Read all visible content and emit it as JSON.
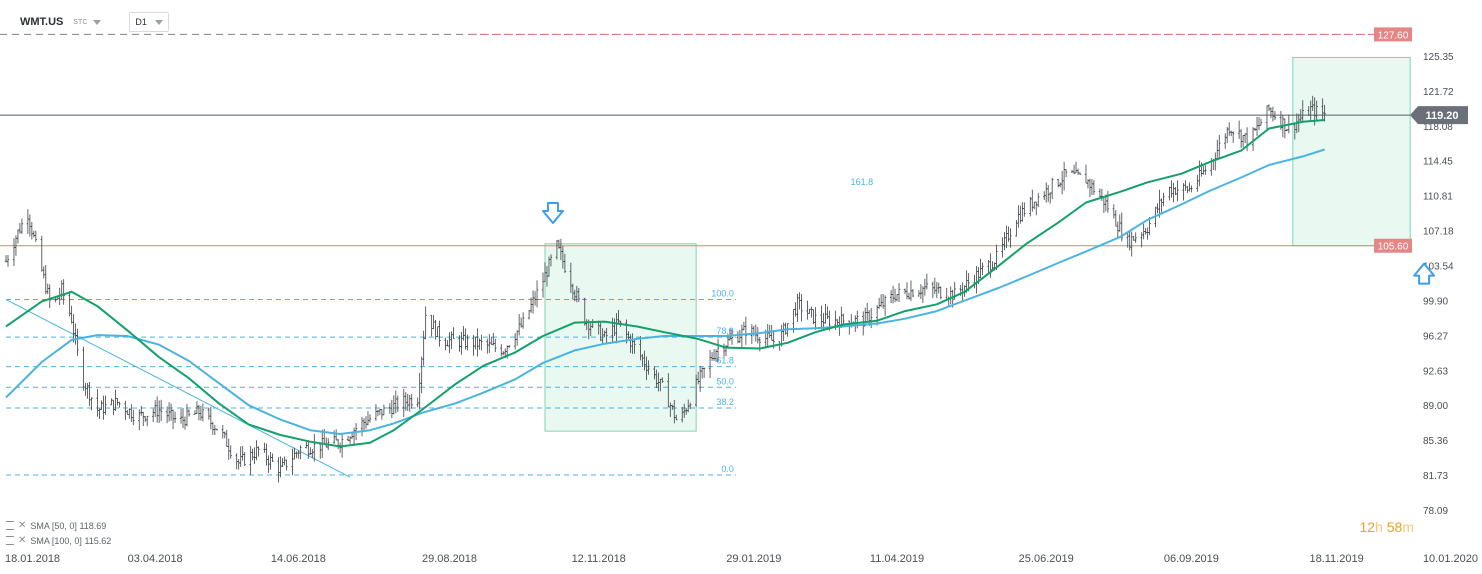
{
  "header": {
    "symbol": "WMT.US",
    "label_stc": "STC",
    "timeframe": "D1"
  },
  "timer": {
    "hours": "12",
    "h_unit": "h",
    "minutes": "58",
    "m_unit": "m"
  },
  "legend": [
    {
      "label": "SMA [50, 0]",
      "value": "118.69"
    },
    {
      "label": "SMA [100, 0]",
      "value": "115.62"
    }
  ],
  "colors": {
    "sma50": "#13a06a",
    "sma100": "#4ab3e0",
    "fib": "#4ab3e0",
    "level_red": "#e97d7d",
    "current": "#555b62",
    "candle": "#3a3f45",
    "box_fill": "#e3f7ee",
    "box_stroke": "#7fd4b2",
    "arrow": "#3d9ee8",
    "timer": "#f0a020"
  },
  "chart_data": {
    "type": "candlestick",
    "symbol": "WMT.US",
    "timeframe": "D1",
    "x_ticks": [
      "18.01.2018",
      "03.04.2018",
      "14.06.2018",
      "29.08.2018",
      "12.11.2018",
      "29.01.2019",
      "11.04.2019",
      "25.06.2019",
      "06.09.2019",
      "18.11.2019",
      "10.01.2020"
    ],
    "x_range": [
      "2018-01-18",
      "2020-01-10"
    ],
    "y_ticks": [
      "125.35",
      "121.72",
      "118.08",
      "114.45",
      "110.81",
      "107.18",
      "103.54",
      "99.90",
      "96.27",
      "92.63",
      "89.00",
      "85.36",
      "81.73",
      "78.09"
    ],
    "ylim": [
      78.09,
      125.35
    ],
    "price_levels": [
      {
        "value": 127.6,
        "label": "127.60",
        "style": "dashed"
      },
      {
        "value": 105.6,
        "label": "105.60",
        "style": "solid"
      }
    ],
    "current_price": {
      "value": 119.2,
      "label": "119.20"
    },
    "fibonacci": {
      "high": 100.0,
      "low": 81.73,
      "start_date": "2018-01-18",
      "end_date": "2019-01-20",
      "levels": [
        {
          "ratio": 100.0,
          "label": "100.0"
        },
        {
          "ratio": 78.6,
          "label": "78.6"
        },
        {
          "ratio": 61.8,
          "label": "61.8"
        },
        {
          "ratio": 50.0,
          "label": "50.0"
        },
        {
          "ratio": 38.2,
          "label": "38.2"
        },
        {
          "ratio": 0.0,
          "label": "0.0"
        }
      ],
      "extension": {
        "label": "161.8",
        "end_date": "2019-03-30"
      }
    },
    "trendline": {
      "from": {
        "date": "2018-01-18",
        "price": 100.0
      },
      "to": {
        "date": "2018-07-10",
        "price": 81.5
      }
    },
    "highlight_boxes": [
      {
        "from": "2018-10-16",
        "to": "2018-12-31",
        "high": 105.8,
        "low": 86.3
      },
      {
        "from": "2019-10-27",
        "to": "2019-12-25",
        "high": 125.2,
        "low": 105.6
      }
    ],
    "arrows": [
      {
        "direction": "down",
        "date": "2018-10-20",
        "price": 108.8
      },
      {
        "direction": "up",
        "date": "2020-01-01",
        "price": 102.9
      }
    ],
    "sma50": [
      [
        "2018-01-18",
        97.2
      ],
      [
        "2018-02-05",
        99.8
      ],
      [
        "2018-02-20",
        100.8
      ],
      [
        "2018-03-05",
        99.3
      ],
      [
        "2018-03-20",
        96.8
      ],
      [
        "2018-04-05",
        94.0
      ],
      [
        "2018-04-20",
        91.8
      ],
      [
        "2018-05-05",
        89.2
      ],
      [
        "2018-05-20",
        87.0
      ],
      [
        "2018-06-05",
        85.9
      ],
      [
        "2018-06-20",
        85.2
      ],
      [
        "2018-07-05",
        84.7
      ],
      [
        "2018-07-20",
        85.1
      ],
      [
        "2018-08-01",
        86.4
      ],
      [
        "2018-08-15",
        88.5
      ],
      [
        "2018-09-01",
        91.2
      ],
      [
        "2018-09-15",
        93.1
      ],
      [
        "2018-10-01",
        94.5
      ],
      [
        "2018-10-15",
        96.2
      ],
      [
        "2018-10-31",
        97.6
      ],
      [
        "2018-11-15",
        97.7
      ],
      [
        "2018-12-01",
        97.2
      ],
      [
        "2018-12-15",
        96.6
      ],
      [
        "2019-01-01",
        95.9
      ],
      [
        "2019-01-15",
        95.0
      ],
      [
        "2019-02-01",
        94.9
      ],
      [
        "2019-02-15",
        95.5
      ],
      [
        "2019-03-01",
        96.6
      ],
      [
        "2019-03-15",
        97.4
      ],
      [
        "2019-04-01",
        97.8
      ],
      [
        "2019-04-15",
        98.8
      ],
      [
        "2019-05-01",
        99.5
      ],
      [
        "2019-05-15",
        100.8
      ],
      [
        "2019-06-01",
        103.5
      ],
      [
        "2019-06-15",
        105.8
      ],
      [
        "2019-07-01",
        108.0
      ],
      [
        "2019-07-15",
        110.1
      ],
      [
        "2019-08-01",
        111.2
      ],
      [
        "2019-08-15",
        112.2
      ],
      [
        "2019-09-01",
        113.1
      ],
      [
        "2019-09-15",
        114.3
      ],
      [
        "2019-10-01",
        115.5
      ],
      [
        "2019-10-15",
        117.8
      ],
      [
        "2019-11-01",
        118.5
      ],
      [
        "2019-11-12",
        118.69
      ]
    ],
    "sma100": [
      [
        "2018-01-18",
        89.8
      ],
      [
        "2018-02-05",
        93.5
      ],
      [
        "2018-02-20",
        95.8
      ],
      [
        "2018-03-05",
        96.3
      ],
      [
        "2018-03-20",
        96.2
      ],
      [
        "2018-04-05",
        95.3
      ],
      [
        "2018-04-20",
        93.6
      ],
      [
        "2018-05-05",
        91.3
      ],
      [
        "2018-05-20",
        89.0
      ],
      [
        "2018-06-05",
        87.5
      ],
      [
        "2018-06-20",
        86.4
      ],
      [
        "2018-07-05",
        86.0
      ],
      [
        "2018-07-20",
        86.4
      ],
      [
        "2018-08-01",
        87.1
      ],
      [
        "2018-08-15",
        88.2
      ],
      [
        "2018-09-01",
        89.2
      ],
      [
        "2018-09-15",
        90.3
      ],
      [
        "2018-10-01",
        91.7
      ],
      [
        "2018-10-15",
        93.4
      ],
      [
        "2018-10-31",
        94.7
      ],
      [
        "2018-11-15",
        95.4
      ],
      [
        "2018-12-01",
        95.9
      ],
      [
        "2018-12-15",
        96.2
      ],
      [
        "2019-01-01",
        96.2
      ],
      [
        "2019-01-15",
        96.2
      ],
      [
        "2019-02-01",
        96.5
      ],
      [
        "2019-02-15",
        96.9
      ],
      [
        "2019-03-01",
        97.0
      ],
      [
        "2019-03-15",
        97.2
      ],
      [
        "2019-04-01",
        97.5
      ],
      [
        "2019-04-15",
        98.0
      ],
      [
        "2019-05-01",
        98.8
      ],
      [
        "2019-05-15",
        99.9
      ],
      [
        "2019-06-01",
        101.2
      ],
      [
        "2019-06-15",
        102.4
      ],
      [
        "2019-07-01",
        103.8
      ],
      [
        "2019-07-15",
        105.0
      ],
      [
        "2019-08-01",
        106.5
      ],
      [
        "2019-08-15",
        108.3
      ],
      [
        "2019-09-01",
        109.9
      ],
      [
        "2019-09-15",
        111.3
      ],
      [
        "2019-10-01",
        112.7
      ],
      [
        "2019-10-15",
        114.0
      ],
      [
        "2019-11-01",
        114.9
      ],
      [
        "2019-11-12",
        115.62
      ]
    ],
    "price_path": [
      [
        "2018-01-18",
        104.0
      ],
      [
        "2018-01-24",
        107.0
      ],
      [
        "2018-01-29",
        109.0
      ],
      [
        "2018-02-05",
        103.0
      ],
      [
        "2018-02-10",
        99.0
      ],
      [
        "2018-02-15",
        101.0
      ],
      [
        "2018-02-20",
        98.0
      ],
      [
        "2018-02-25",
        92.0
      ],
      [
        "2018-03-05",
        88.5
      ],
      [
        "2018-03-15",
        89.3
      ],
      [
        "2018-03-25",
        87.8
      ],
      [
        "2018-04-05",
        88.5
      ],
      [
        "2018-04-15",
        87.3
      ],
      [
        "2018-04-25",
        88.3
      ],
      [
        "2018-05-05",
        86.5
      ],
      [
        "2018-05-15",
        83.0
      ],
      [
        "2018-05-25",
        84.3
      ],
      [
        "2018-06-05",
        82.3
      ],
      [
        "2018-06-15",
        84.5
      ],
      [
        "2018-06-25",
        84.8
      ],
      [
        "2018-07-05",
        85.2
      ],
      [
        "2018-07-15",
        87.0
      ],
      [
        "2018-07-25",
        88.2
      ],
      [
        "2018-08-05",
        89.3
      ],
      [
        "2018-08-13",
        89.8
      ],
      [
        "2018-08-17",
        98.5
      ],
      [
        "2018-08-25",
        95.8
      ],
      [
        "2018-09-10",
        95.5
      ],
      [
        "2018-09-25",
        94.8
      ],
      [
        "2018-10-05",
        97.5
      ],
      [
        "2018-10-15",
        102.0
      ],
      [
        "2018-10-22",
        105.5
      ],
      [
        "2018-10-28",
        102.5
      ],
      [
        "2018-11-05",
        98.0
      ],
      [
        "2018-11-15",
        96.0
      ],
      [
        "2018-11-22",
        97.5
      ],
      [
        "2018-12-05",
        93.5
      ],
      [
        "2018-12-15",
        90.5
      ],
      [
        "2018-12-22",
        87.0
      ],
      [
        "2019-01-01",
        91.5
      ],
      [
        "2019-01-10",
        94.8
      ],
      [
        "2019-01-25",
        96.8
      ],
      [
        "2019-02-10",
        95.5
      ],
      [
        "2019-02-20",
        99.5
      ],
      [
        "2019-03-01",
        98.0
      ],
      [
        "2019-03-10",
        97.8
      ],
      [
        "2019-03-25",
        97.8
      ],
      [
        "2019-04-10",
        100.5
      ],
      [
        "2019-04-25",
        101.2
      ],
      [
        "2019-05-10",
        100.5
      ],
      [
        "2019-05-20",
        102.3
      ],
      [
        "2019-06-01",
        104.5
      ],
      [
        "2019-06-10",
        108.5
      ],
      [
        "2019-06-20",
        110.5
      ],
      [
        "2019-07-05",
        113.0
      ],
      [
        "2019-07-15",
        112.5
      ],
      [
        "2019-07-25",
        110.0
      ],
      [
        "2019-08-05",
        106.0
      ],
      [
        "2019-08-15",
        107.5
      ],
      [
        "2019-08-25",
        111.5
      ],
      [
        "2019-09-05",
        111.5
      ],
      [
        "2019-09-15",
        114.0
      ],
      [
        "2019-09-25",
        118.0
      ],
      [
        "2019-10-05",
        116.5
      ],
      [
        "2019-10-15",
        119.8
      ],
      [
        "2019-10-25",
        117.8
      ],
      [
        "2019-11-05",
        119.8
      ],
      [
        "2019-11-12",
        119.3
      ]
    ]
  }
}
